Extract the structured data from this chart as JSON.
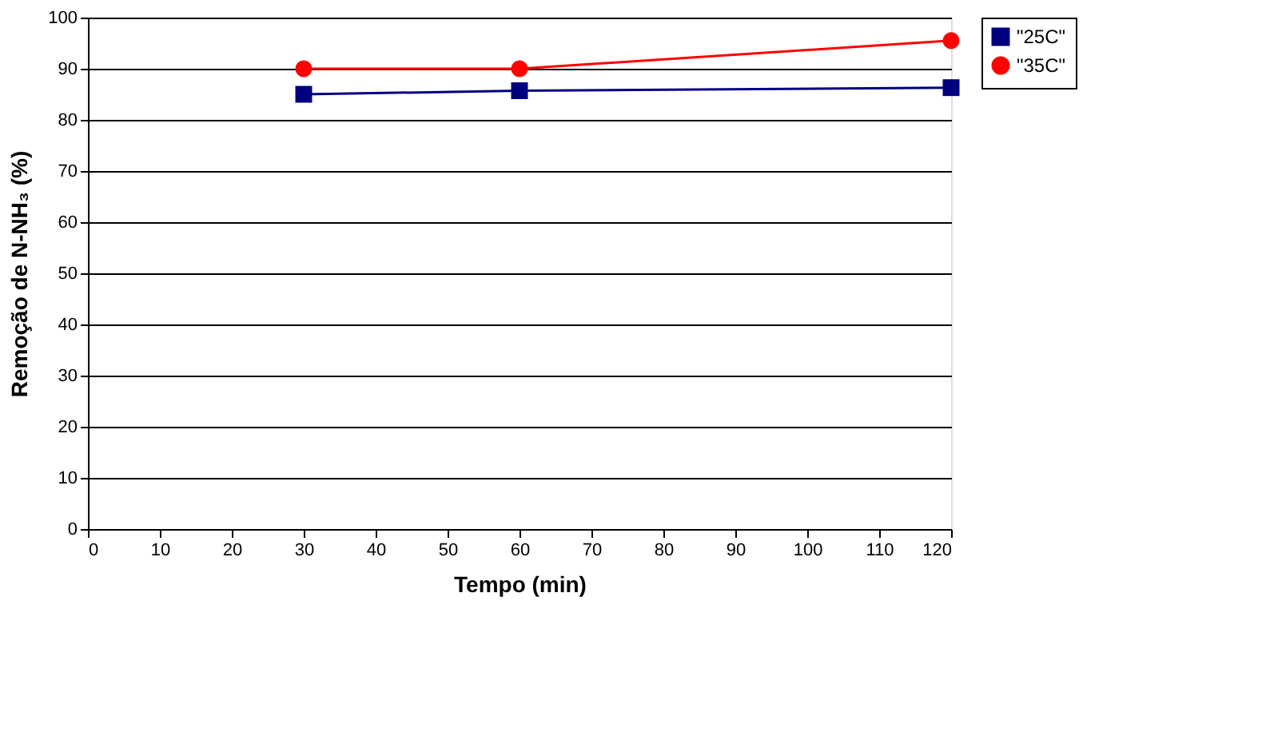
{
  "chart_data": {
    "type": "line",
    "xlabel": "Tempo (min)",
    "ylabel": "Remoção de N-NH₃ (%)",
    "x": [
      30,
      60,
      120
    ],
    "series": [
      {
        "name": "\"25C\"",
        "color": "#000080",
        "values": [
          85,
          85.7,
          86.3
        ],
        "marker": "square"
      },
      {
        "name": "\"35C\"",
        "color": "#ff0000",
        "values": [
          90,
          90,
          95.5
        ],
        "marker": "circle"
      }
    ],
    "xlim": [
      0,
      120
    ],
    "xticks": [
      0,
      10,
      20,
      30,
      40,
      50,
      60,
      70,
      80,
      90,
      100,
      110,
      120
    ],
    "ylim": [
      0,
      100
    ],
    "yticks": [
      0,
      10,
      20,
      30,
      40,
      50,
      60,
      70,
      80,
      90,
      100
    ],
    "grid": "y",
    "legend": "right",
    "line_style": "solid"
  }
}
